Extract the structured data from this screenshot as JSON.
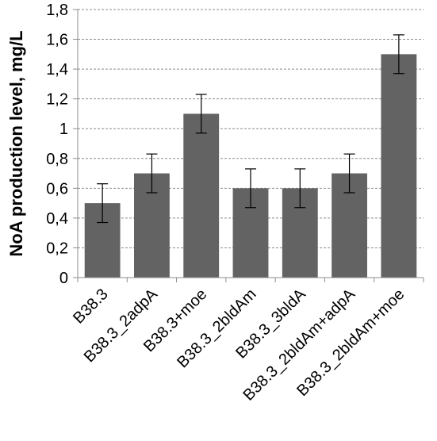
{
  "chart_data": {
    "type": "bar",
    "title": "",
    "xlabel": "",
    "ylabel": "NoA production level, mg/L",
    "categories": [
      "B38.3",
      "B38.3_2adpA",
      "B38.3+moe",
      "B38.3_2bldAm",
      "B38.3_3bldA",
      "B38.3_2bldAm+adpA",
      "B38.3_2bldAm+moe"
    ],
    "values": [
      0.5,
      0.7,
      1.1,
      0.6,
      0.6,
      0.7,
      1.5
    ],
    "error_bars": [
      0.13,
      0.13,
      0.13,
      0.13,
      0.13,
      0.13,
      0.13
    ],
    "ylim": [
      0,
      1.8
    ],
    "yticks": [
      0,
      0.2,
      0.4,
      0.6,
      0.8,
      1,
      1.2,
      1.4,
      1.6,
      1.8
    ],
    "ytick_labels": [
      "0",
      "0,2",
      "0,4",
      "0,6",
      "0,8",
      "1",
      "1,2",
      "1,4",
      "1,6",
      "1,8"
    ],
    "grid": true,
    "legend": "none",
    "colors": {
      "bar": "#636363",
      "grid": "#8c8c8c",
      "axis": "#8c8c8c",
      "error": "#000000"
    }
  }
}
